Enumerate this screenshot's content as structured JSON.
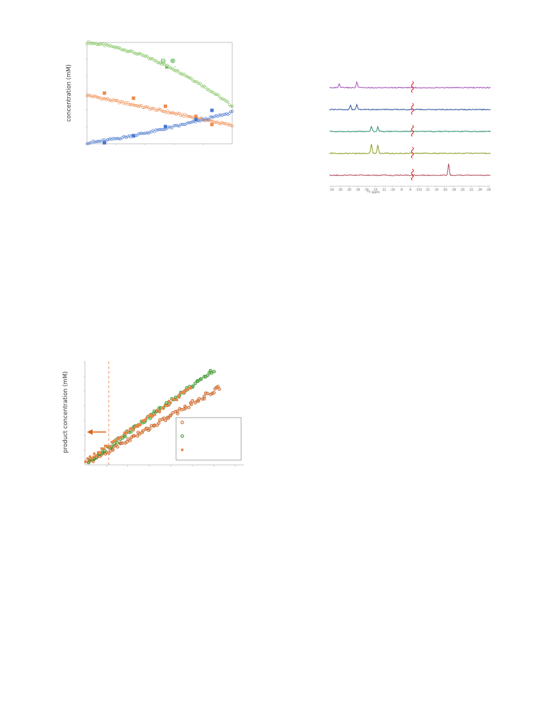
{
  "chart_data": [
    {
      "id": "kinetics",
      "type": "scatter",
      "ylabel": "concentration  (mM)",
      "xlim": [
        0,
        100
      ],
      "ylim": [
        0,
        100
      ],
      "legend": {
        "symbols": [
          "⊖",
          "⊕",
          "≡",
          "-"
        ],
        "color": "#3a9a2a"
      },
      "series": [
        {
          "color": "#7cc25a",
          "marker": "open-circle",
          "x0": 0,
          "x1": 100,
          "y0": 100,
          "y1": 37,
          "n": 100,
          "shape": "decay"
        },
        {
          "color": "#f08a4b",
          "marker": "open-circle",
          "x0": 0,
          "x1": 100,
          "y0": 48,
          "y1": 18,
          "n": 100,
          "shape": "linear"
        },
        {
          "color": "#4a78d0",
          "marker": "open-circle",
          "x0": 0,
          "x1": 100,
          "y0": 1,
          "y1": 31,
          "n": 100,
          "shape": "rise"
        },
        {
          "color": "#f08a4b",
          "marker": "square",
          "points": [
            [
              12,
              50
            ],
            [
              32,
              45
            ],
            [
              54,
              37
            ],
            [
              75,
              27
            ],
            [
              86,
              19
            ]
          ]
        },
        {
          "color": "#4a78d0",
          "marker": "square",
          "points": [
            [
              12,
              1
            ],
            [
              32,
              8
            ],
            [
              54,
              17
            ],
            [
              75,
              24
            ],
            [
              86,
              33
            ]
          ]
        }
      ]
    },
    {
      "id": "spectra",
      "type": "line",
      "xlabel": "¹⁹F (ppm)",
      "xticks": [
        "-24",
        "-20",
        "-20",
        "-18",
        "-16",
        "-14",
        "-12",
        "-10",
        "-8",
        "-6",
        "-110",
        "-12",
        "-14",
        "-16",
        "-18",
        "-20",
        "-22",
        "-24",
        "-26"
      ],
      "break_color": "#e02020",
      "traces": [
        {
          "color": "#a04ab8",
          "peaks": [
            [
              0.06,
              5
            ],
            [
              0.17,
              8
            ]
          ]
        },
        {
          "color": "#2a4e9a",
          "peaks": [
            [
              0.13,
              6
            ],
            [
              0.17,
              7
            ]
          ]
        },
        {
          "color": "#2a8a6a",
          "peaks": [
            [
              0.26,
              7
            ],
            [
              0.3,
              7
            ]
          ]
        },
        {
          "color": "#8a9a20",
          "peaks": [
            [
              0.26,
              14
            ],
            [
              0.3,
              12
            ]
          ]
        },
        {
          "color": "#b04a5a",
          "peaks": [
            [
              0.74,
              17
            ]
          ]
        }
      ]
    },
    {
      "id": "product",
      "type": "scatter",
      "ylabel": "product concentration  (mM)",
      "xlim": [
        0,
        100
      ],
      "ylim": [
        0,
        100
      ],
      "dashed_x": 15,
      "arrow_color": "#e06010",
      "legend_location": "lower-right",
      "series": [
        {
          "color": "#f08a4b",
          "marker": "open-circle-dark",
          "x0": 2,
          "x1": 85,
          "y0": 2,
          "y1": 75,
          "n": 80
        },
        {
          "color": "#5cc24a",
          "marker": "open-circle-dark",
          "x0": 2,
          "x1": 81,
          "y0": 3,
          "y1": 92,
          "n": 75
        },
        {
          "color": "#f08a4b",
          "marker": "filled-circle",
          "x0": 0,
          "x1": 67,
          "y0": 3,
          "y1": 75,
          "n": 70
        }
      ]
    }
  ]
}
